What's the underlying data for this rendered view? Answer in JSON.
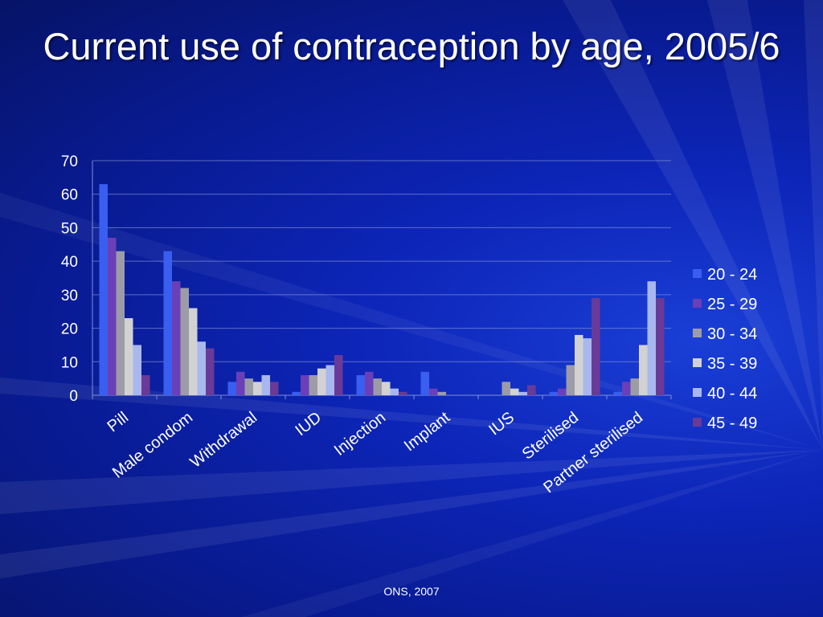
{
  "slide": {
    "title": "Current use of contraception by age, 2005/6",
    "footer": "ONS, 2007"
  },
  "colors": {
    "background": "#0a1f9e",
    "text": "#ffffff",
    "gridline": "#7f8fd6"
  },
  "chart_data": {
    "type": "bar",
    "title": "",
    "xlabel": "",
    "ylabel": "",
    "ylim": [
      0,
      70
    ],
    "yticks": [
      0,
      10,
      20,
      30,
      40,
      50,
      60,
      70
    ],
    "grid": true,
    "legend_position": "right",
    "categories": [
      "Pill",
      "Male condom",
      "Withdrawal",
      "IUD",
      "Injection",
      "Implant",
      "IUS",
      "Sterilised",
      "Partner sterilised"
    ],
    "series": [
      {
        "name": "20 - 24",
        "color": "#3a5ef0",
        "values": [
          63,
          43,
          4,
          1,
          6,
          7,
          0,
          1,
          1
        ]
      },
      {
        "name": "25 - 29",
        "color": "#6a3fb8",
        "values": [
          47,
          34,
          7,
          6,
          7,
          2,
          0,
          2,
          4
        ]
      },
      {
        "name": "30 - 34",
        "color": "#9c9ca8",
        "values": [
          43,
          32,
          5,
          6,
          5,
          1,
          4,
          9,
          5
        ]
      },
      {
        "name": "35 - 39",
        "color": "#d2d2d2",
        "values": [
          23,
          26,
          4,
          8,
          4,
          0,
          2,
          18,
          15
        ]
      },
      {
        "name": "40 - 44",
        "color": "#a8b8ee",
        "values": [
          15,
          16,
          6,
          9,
          2,
          0,
          1,
          17,
          34
        ]
      },
      {
        "name": "45 - 49",
        "color": "#6a3a98",
        "values": [
          6,
          14,
          4,
          12,
          1,
          0,
          3,
          29,
          29
        ]
      }
    ]
  }
}
